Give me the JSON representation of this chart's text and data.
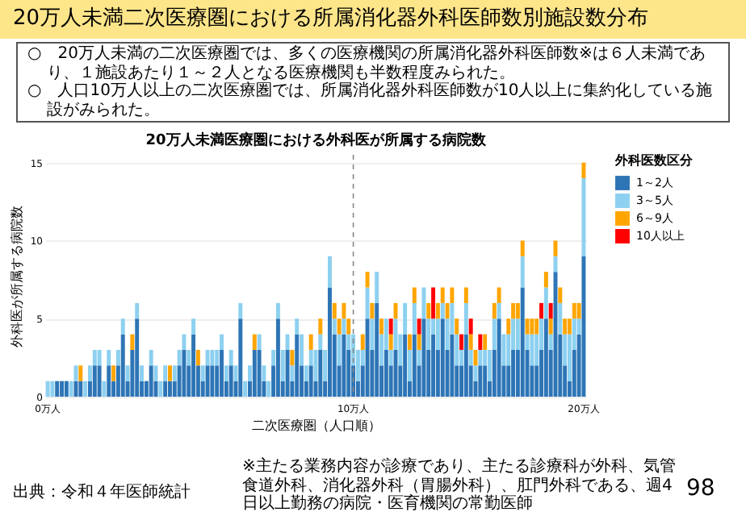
{
  "chart_data": {
    "type": "bar",
    "title": "20万人未満二次医療圏における所属消化器外科医師数別施設数分布",
    "subtitle": "20万人未満医療圏における外科医が所属する病院数",
    "xlabel": "二次医療圏（人口順）",
    "ylabel": "外科医が所属する病院数",
    "legend_title": "外科医数区分",
    "legend": "right",
    "stacked": true,
    "grid": "y",
    "ylim": [
      0,
      15.5
    ],
    "yticks": [
      0,
      5,
      10,
      15
    ],
    "annotations": [
      "○　20万人未満の二次医療圏では、多くの医療機関の所属消化器外科医師数※は６人未満であり、１施設あたり１～２人となる医療機関も半数程度みられた。",
      "○　人口10万人以上の二次医療圏では、所属消化器外科医師数が10人以上に集約化している施設がみられた。",
      "出典：令和４年医師統計",
      "※主たる業務内容が診療であり、主たる診療科が外科、気管食道外科、消化器外科（胃腸外科）、肛門外科である、週4日以上勤務の病院・医育機関の常勤医師",
      "98"
    ],
    "ref_lines": [
      {
        "axis": "x",
        "value": "10万人",
        "line_style": "dashed",
        "color": "#888888"
      }
    ],
    "categories": [
      "0万人",
      null,
      null,
      null,
      null,
      null,
      null,
      null,
      null,
      null,
      null,
      null,
      null,
      null,
      null,
      null,
      null,
      null,
      null,
      null,
      null,
      null,
      null,
      null,
      null,
      null,
      null,
      null,
      null,
      null,
      null,
      null,
      null,
      null,
      null,
      null,
      null,
      null,
      null,
      null,
      null,
      null,
      null,
      null,
      null,
      null,
      null,
      null,
      null,
      null,
      null,
      null,
      null,
      null,
      null,
      null,
      null,
      null,
      null,
      null,
      null,
      null,
      null,
      null,
      null,
      "10万人",
      null,
      null,
      null,
      null,
      null,
      null,
      null,
      null,
      null,
      null,
      null,
      null,
      null,
      null,
      null,
      null,
      null,
      null,
      null,
      null,
      null,
      null,
      null,
      null,
      null,
      null,
      null,
      null,
      null,
      null,
      null,
      null,
      null,
      null,
      null,
      null,
      null,
      null,
      null,
      null,
      null,
      null,
      null,
      null,
      null,
      null,
      null,
      null,
      "20万人"
    ],
    "series": [
      {
        "name": "1～2人",
        "color": "#2e75b6",
        "values": [
          0,
          0,
          1,
          1,
          1,
          0,
          1,
          1,
          0,
          1,
          2,
          2,
          0,
          2,
          1,
          2,
          4,
          1,
          3,
          5,
          1,
          1,
          2,
          1,
          0,
          1,
          1,
          1,
          2,
          3,
          2,
          4,
          2,
          1,
          2,
          2,
          2,
          3,
          1,
          2,
          1,
          5,
          0,
          1,
          3,
          3,
          1,
          0,
          2,
          5,
          1,
          3,
          1,
          4,
          2,
          1,
          2,
          1,
          3,
          1,
          7,
          4,
          2,
          4,
          3,
          2,
          1,
          2,
          5,
          3,
          6,
          2,
          3,
          2,
          3,
          2,
          4,
          1,
          4,
          2,
          5,
          3,
          4,
          3,
          5,
          3,
          4,
          2,
          2,
          4,
          2,
          1,
          2,
          2,
          1,
          3,
          5,
          2,
          2,
          3,
          3,
          7,
          3,
          2,
          2,
          3,
          5,
          3,
          8,
          4,
          2,
          1,
          3,
          4,
          9
        ]
      },
      {
        "name": "3～5人",
        "color": "#8dd0f0",
        "values": [
          1,
          1,
          0,
          0,
          0,
          1,
          1,
          0,
          1,
          1,
          1,
          1,
          1,
          1,
          0,
          1,
          1,
          1,
          0,
          1,
          1,
          0,
          1,
          1,
          1,
          1,
          0,
          1,
          1,
          1,
          1,
          1,
          0,
          1,
          1,
          1,
          1,
          1,
          1,
          1,
          1,
          1,
          1,
          1,
          0,
          1,
          1,
          1,
          1,
          1,
          2,
          1,
          1,
          1,
          2,
          1,
          1,
          2,
          1,
          2,
          2,
          1,
          2,
          1,
          1,
          2,
          2,
          1,
          2,
          2,
          2,
          2,
          2,
          1,
          2,
          2,
          2,
          2,
          2,
          1,
          2,
          2,
          1,
          2,
          1,
          2,
          2,
          2,
          1,
          2,
          1,
          1,
          1,
          1,
          2,
          2,
          1,
          2,
          2,
          2,
          2,
          2,
          1,
          2,
          2,
          2,
          2,
          1,
          1,
          2,
          2,
          3,
          2,
          1,
          5
        ]
      },
      {
        "name": "6～9人",
        "color": "#ffa500",
        "values": [
          0,
          0,
          0,
          0,
          0,
          0,
          0,
          1,
          0,
          0,
          0,
          0,
          0,
          0,
          1,
          0,
          0,
          0,
          1,
          0,
          0,
          0,
          0,
          0,
          0,
          0,
          1,
          0,
          0,
          0,
          0,
          0,
          1,
          0,
          0,
          0,
          0,
          0,
          0,
          0,
          0,
          0,
          0,
          0,
          1,
          0,
          0,
          0,
          0,
          0,
          0,
          0,
          1,
          0,
          0,
          0,
          1,
          0,
          1,
          0,
          0,
          1,
          1,
          1,
          1,
          0,
          0,
          1,
          1,
          1,
          0,
          1,
          0,
          1,
          1,
          0,
          0,
          1,
          1,
          1,
          0,
          1,
          0,
          1,
          1,
          1,
          1,
          1,
          0,
          1,
          1,
          1,
          0,
          1,
          0,
          1,
          1,
          0,
          1,
          1,
          1,
          1,
          1,
          1,
          1,
          0,
          1,
          1,
          1,
          1,
          1,
          1,
          1,
          1,
          1
        ]
      },
      {
        "name": "10人以上",
        "color": "#ff0000",
        "values": [
          0,
          0,
          0,
          0,
          0,
          0,
          0,
          0,
          0,
          0,
          0,
          0,
          0,
          0,
          0,
          0,
          0,
          0,
          0,
          0,
          0,
          0,
          0,
          0,
          0,
          0,
          0,
          0,
          0,
          0,
          0,
          0,
          0,
          0,
          0,
          0,
          0,
          0,
          0,
          0,
          0,
          0,
          0,
          0,
          0,
          0,
          0,
          0,
          0,
          0,
          0,
          0,
          0,
          0,
          0,
          0,
          0,
          0,
          0,
          0,
          0,
          0,
          0,
          0,
          0,
          0,
          0,
          0,
          0,
          0,
          0,
          0,
          0,
          1,
          0,
          0,
          0,
          0,
          0,
          1,
          0,
          0,
          2,
          0,
          0,
          0,
          0,
          0,
          1,
          0,
          1,
          0,
          1,
          0,
          0,
          0,
          0,
          0,
          0,
          0,
          0,
          0,
          0,
          0,
          0,
          1,
          0,
          1,
          0,
          0,
          0,
          0,
          0,
          0,
          0
        ]
      }
    ]
  }
}
